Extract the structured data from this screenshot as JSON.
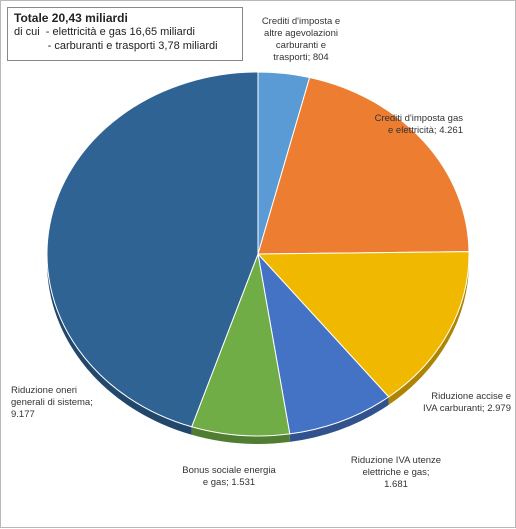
{
  "summary": {
    "title": "Totale 20,43 miliardi",
    "line1": "di cui  - elettricità e gas 16,65 miliardi",
    "line2": "           - carburanti e trasporti 3,78 miliardi"
  },
  "chart_data": {
    "type": "pie",
    "title": "",
    "slices": [
      {
        "label": [
          "Crediti d'imposta e",
          "altre agevolazioni",
          "carburanti e",
          "trasporti;  804"
        ],
        "name": "Crediti d'imposta e altre agevolazioni carburanti e trasporti",
        "value": 804,
        "value_label": "804",
        "color": "#5b9bd5"
      },
      {
        "label": [
          "Crediti d'imposta gas",
          "e elettricità;  4.261"
        ],
        "name": "Crediti d'imposta gas e elettricità",
        "value": 4261,
        "value_label": "4.261",
        "color": "#ed7d31"
      },
      {
        "label": [
          "Riduzione accise  e",
          "IVA carburanti;  2.979"
        ],
        "name": "Riduzione accise  e IVA carburanti",
        "value": 2979,
        "value_label": "2.979",
        "color": "#f1b800"
      },
      {
        "label": [
          "Riduzione IVA utenze",
          "elettriche e gas;",
          "1.681"
        ],
        "name": "Riduzione IVA utenze elettriche e gas",
        "value": 1681,
        "value_label": "1.681",
        "color": "#4472c4"
      },
      {
        "label": [
          "Bonus sociale energia",
          "e gas;  1.531"
        ],
        "name": "Bonus sociale energia e gas",
        "value": 1531,
        "value_label": "1.531",
        "color": "#70ad47"
      },
      {
        "label": [
          "Riduzione oneri",
          "generali di sistema;",
          "9.177"
        ],
        "name": "Riduzione oneri generali di sistema",
        "value": 9177,
        "value_label": "9.177",
        "color": "#2e6394"
      }
    ],
    "start": "12 o'clock",
    "direction": "clockwise",
    "style": "3d-tilted",
    "legend": "none"
  }
}
